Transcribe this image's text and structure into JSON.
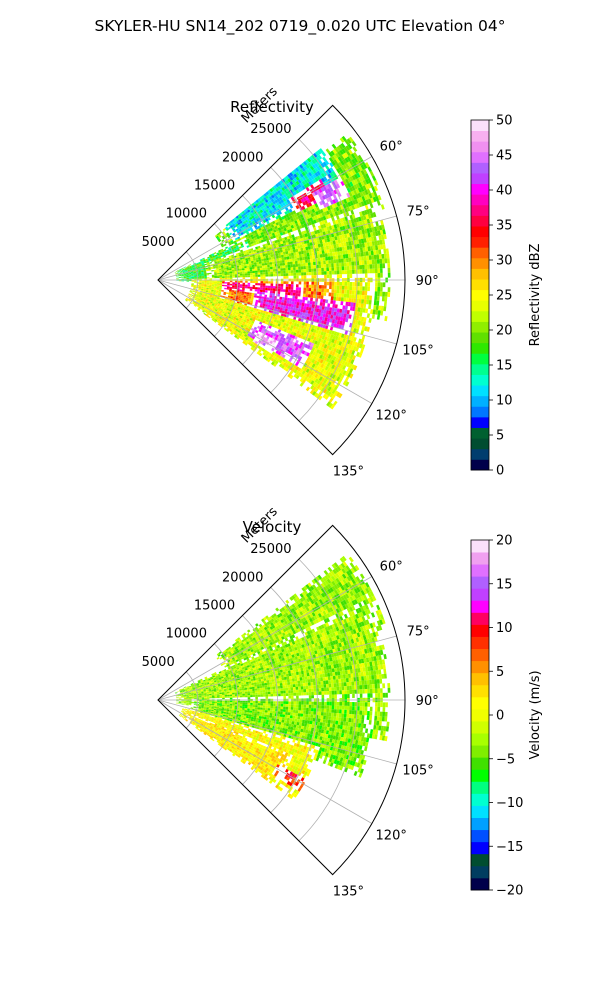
{
  "figure": {
    "suptitle": "SKYLER-HU  SN14_202  0719_0.020 UTC Elevation 04°"
  },
  "chart_data": [
    {
      "type": "heatmap",
      "projection": "polar-sector",
      "title": "Reflectivity",
      "range_axis_label": "Meters",
      "range_ticks": [
        "5000",
        "10000",
        "15000",
        "20000",
        "25000"
      ],
      "range_max_m": 31000,
      "azimuth_range_deg": [
        45,
        135
      ],
      "azimuth_tick_labels": [
        "60°",
        "75°",
        "90°",
        "105°",
        "120°",
        "135°"
      ],
      "colorbar": {
        "label": "Reflectivity dBZ",
        "min": 0,
        "max": 50,
        "ticks": [
          "0",
          "5",
          "10",
          "15",
          "20",
          "25",
          "30",
          "35",
          "40",
          "45",
          "50"
        ],
        "colors": [
          "#00004a",
          "#003d6e",
          "#004d30",
          "#006030",
          "#0000ff",
          "#0077ff",
          "#00b0ff",
          "#00e0ff",
          "#00ffd0",
          "#00ff90",
          "#00ff40",
          "#2ee800",
          "#60e000",
          "#90ee00",
          "#c0ff00",
          "#e8ff00",
          "#ffff00",
          "#ffe000",
          "#ffc000",
          "#ff9000",
          "#ff6000",
          "#ff2000",
          "#ff0000",
          "#ff0040",
          "#ff0080",
          "#ff00c0",
          "#ff00ff",
          "#c040ff",
          "#b060ff",
          "#e070ff",
          "#f090f0",
          "#f8b0f0",
          "#fce0fc"
        ]
      },
      "echo_regions": [
        {
          "az": [
            52,
            72
          ],
          "r": [
            9000,
            30000
          ],
          "dbz": 20
        },
        {
          "az": [
            48,
            62
          ],
          "r": [
            10500,
            26000
          ],
          "dbz": 12
        },
        {
          "az": [
            64,
            92
          ],
          "r": [
            2000,
            12000
          ],
          "dbz": 17
        },
        {
          "az": [
            70,
            100
          ],
          "r": [
            6000,
            29000
          ],
          "dbz": 21
        },
        {
          "az": [
            88,
            126
          ],
          "r": [
            4000,
            27000
          ],
          "dbz": 24
        },
        {
          "az": [
            90,
            106
          ],
          "r": [
            8000,
            22000
          ],
          "dbz": 30
        },
        {
          "az": [
            91,
            97
          ],
          "r": [
            8000,
            18000
          ],
          "dbz": 37
        },
        {
          "az": [
            96,
            106
          ],
          "r": [
            12000,
            25000
          ],
          "dbz": 40
        },
        {
          "az": [
            112,
            121
          ],
          "r": [
            13000,
            21000
          ],
          "dbz": 43
        },
        {
          "az": [
            116,
            122
          ],
          "r": [
            14000,
            17000
          ],
          "dbz": 47
        },
        {
          "az": [
            58,
            64
          ],
          "r": [
            19000,
            24000
          ],
          "dbz": 36
        },
        {
          "az": [
            60,
            66
          ],
          "r": [
            22000,
            26000
          ],
          "dbz": 44
        }
      ]
    },
    {
      "type": "heatmap",
      "projection": "polar-sector",
      "title": "Velocity",
      "range_axis_label": "Meters",
      "range_ticks": [
        "5000",
        "10000",
        "15000",
        "20000",
        "25000"
      ],
      "range_max_m": 31000,
      "azimuth_range_deg": [
        45,
        135
      ],
      "azimuth_tick_labels": [
        "60°",
        "75°",
        "90°",
        "105°",
        "120°",
        "135°"
      ],
      "colorbar": {
        "label": "Velocity (m/s)",
        "min": -20,
        "max": 20,
        "ticks": [
          "−20",
          "−15",
          "−10",
          "−5",
          "0",
          "5",
          "10",
          "15",
          "20"
        ],
        "colors": [
          "#00004a",
          "#003d60",
          "#004d30",
          "#0000ff",
          "#0050ff",
          "#00a0ff",
          "#00e0ff",
          "#00ffd0",
          "#00ff80",
          "#00ff00",
          "#40e000",
          "#80ee00",
          "#a8ff00",
          "#d0ff00",
          "#f0ff00",
          "#ffff00",
          "#ffe000",
          "#ffc000",
          "#ff9000",
          "#ff6000",
          "#ff3000",
          "#ff0000",
          "#ff0060",
          "#ff00ff",
          "#c040ff",
          "#b060ff",
          "#e070ff",
          "#f0a0f0",
          "#fce0fc"
        ]
      },
      "echo_regions": [
        {
          "az": [
            52,
            72
          ],
          "r": [
            9000,
            30000
          ],
          "vel": -3
        },
        {
          "az": [
            64,
            100
          ],
          "r": [
            2000,
            29000
          ],
          "vel": -3
        },
        {
          "az": [
            88,
            110
          ],
          "r": [
            4000,
            27000
          ],
          "vel": -4
        },
        {
          "az": [
            106,
            126
          ],
          "r": [
            3000,
            21000
          ],
          "vel": 1
        },
        {
          "az": [
            112,
            126
          ],
          "r": [
            4000,
            18000
          ],
          "vel": 2
        },
        {
          "az": [
            118,
            122
          ],
          "r": [
            17000,
            21000
          ],
          "vel": 9
        }
      ]
    }
  ]
}
